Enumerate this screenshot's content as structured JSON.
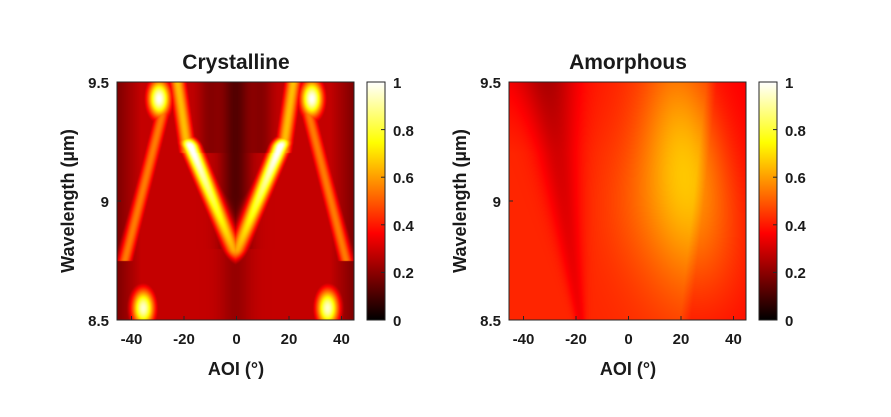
{
  "chart_data": [
    {
      "type": "heatmap",
      "title": "Crystalline",
      "xlabel": "AOI (°)",
      "ylabel": "Wavelength (µm)",
      "xlim": [
        -45,
        45
      ],
      "ylim": [
        8.5,
        9.5
      ],
      "xticks": [
        "-40",
        "-20",
        "0",
        "20",
        "40"
      ],
      "yticks": [
        "8.5",
        "9",
        "9.5"
      ],
      "colorbar": {
        "min": 0,
        "max": 1,
        "ticks": [
          "0",
          "0.2",
          "0.4",
          "0.6",
          "0.8",
          "1"
        ],
        "colormap": "hot"
      },
      "features": [
        {
          "kind": "v-branch",
          "x_at_top": 17,
          "x_at_bottom": 1,
          "y_top": 9.23,
          "y_bottom": 8.8,
          "peak": 0.92
        },
        {
          "kind": "blob",
          "x": 29,
          "y": 9.43,
          "peak": 0.9
        },
        {
          "kind": "blob",
          "x": 35,
          "y": 8.55,
          "peak": 0.85
        },
        {
          "kind": "upper-branch",
          "x_from": 18,
          "x_to": 22,
          "y_from": 9.2,
          "y_to": 9.5,
          "peak": 0.55
        },
        {
          "kind": "outer-branch",
          "x_from": 27,
          "x_to": 42,
          "y_from": 9.4,
          "y_to": 8.75,
          "peak": 0.45
        },
        {
          "kind": "background",
          "value": 0.28
        },
        {
          "kind": "dark-center",
          "x": 0,
          "value": 0.1
        }
      ]
    },
    {
      "type": "heatmap",
      "title": "Amorphous",
      "xlabel": "AOI (°)",
      "ylabel": "Wavelength (µm)",
      "xlim": [
        -45,
        45
      ],
      "ylim": [
        8.5,
        9.5
      ],
      "xticks": [
        "-40",
        "-20",
        "0",
        "20",
        "40"
      ],
      "yticks": [
        "8.5",
        "9",
        "9.5"
      ],
      "colorbar": {
        "min": 0,
        "max": 1,
        "ticks": [
          "0",
          "0.2",
          "0.4",
          "0.6",
          "0.8",
          "1"
        ],
        "colormap": "hot"
      },
      "features": [
        {
          "kind": "background",
          "value": 0.42
        },
        {
          "kind": "bright-wedge",
          "x": 22,
          "y": 9.1,
          "peak": 0.66
        },
        {
          "kind": "dark-wedge",
          "x_from": -30,
          "x_to": -18,
          "y_from": 9.5,
          "y_to": 8.5,
          "value": 0.3
        }
      ]
    }
  ]
}
